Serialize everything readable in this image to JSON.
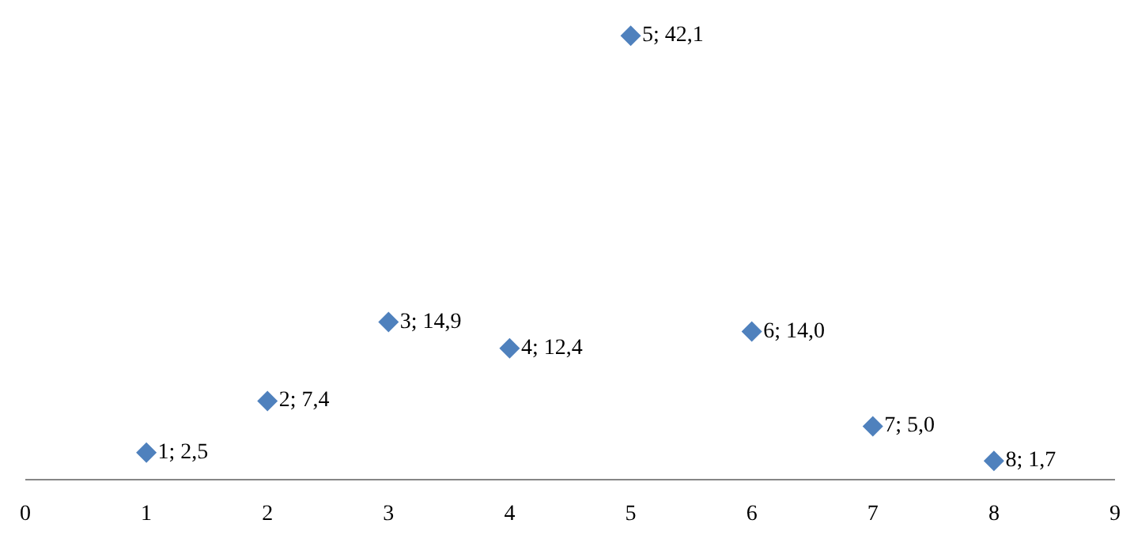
{
  "chart_data": {
    "type": "scatter",
    "marker": "diamond",
    "tick_labels": "x",
    "x": [
      1,
      2,
      3,
      4,
      5,
      6,
      7,
      8
    ],
    "series": [
      {
        "color": "#4f81bd",
        "values": [
          2.5,
          7.4,
          14.9,
          12.4,
          42.1,
          14.0,
          5.0,
          1.7
        ],
        "value_labels": [
          "1; 2,5",
          "2; 7,4",
          "3; 14,9",
          "4; 12,4",
          "5; 42,1",
          "6; 14,0",
          "7; 5,0",
          "8; 1,7"
        ]
      }
    ],
    "xlim": [
      0,
      9
    ],
    "xticks": [
      0,
      1,
      2,
      3,
      4,
      5,
      6,
      7,
      8,
      9
    ],
    "ylim": [
      0,
      45.5
    ]
  }
}
